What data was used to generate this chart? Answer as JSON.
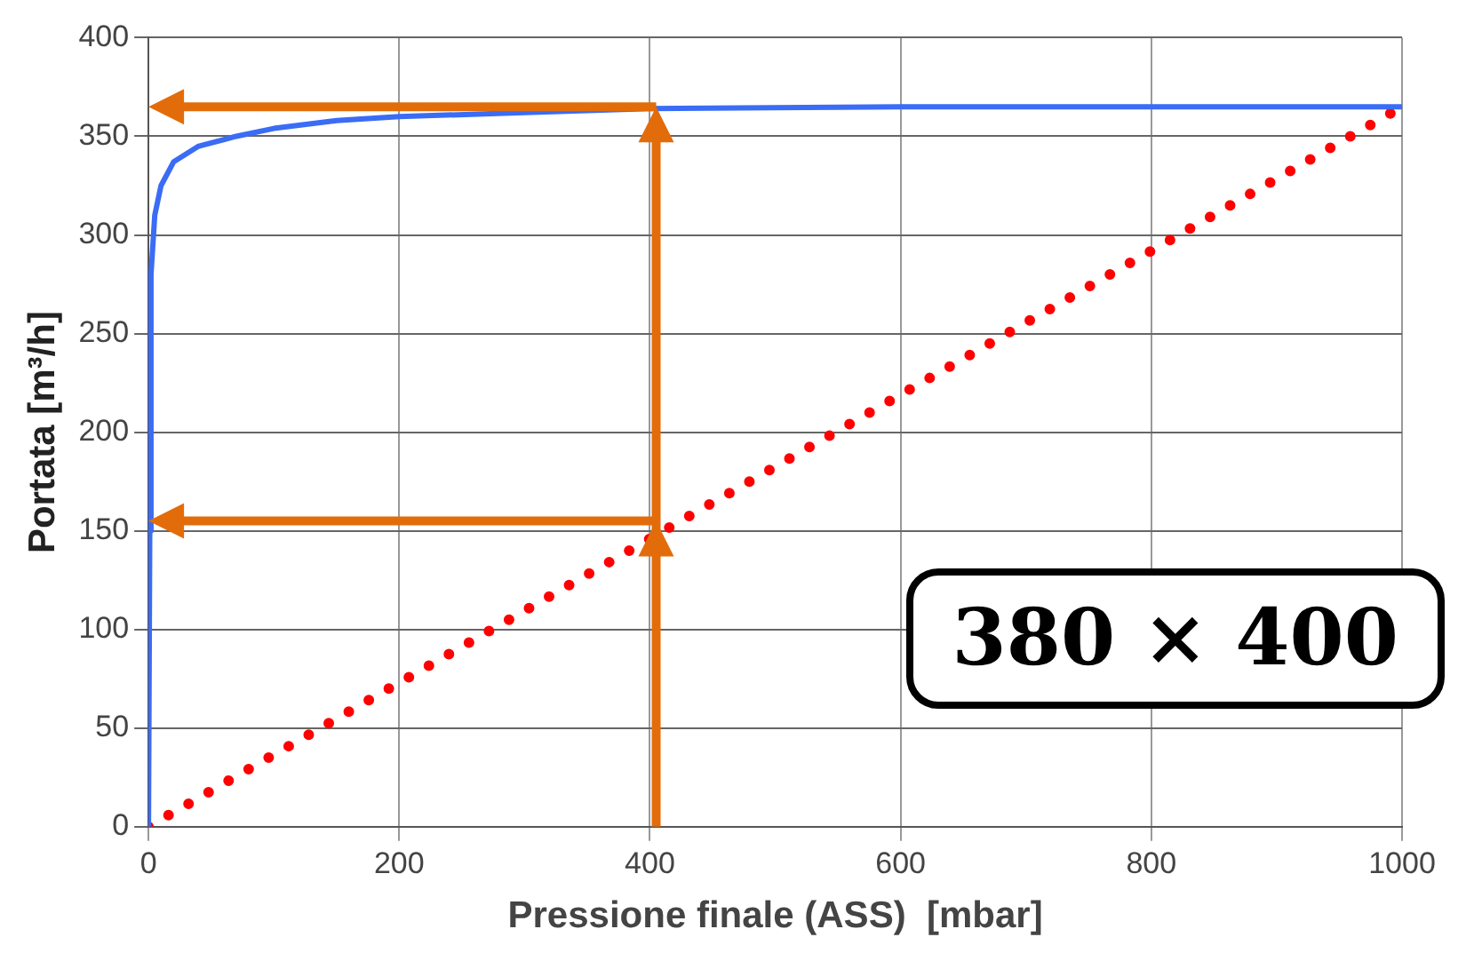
{
  "chart_data": {
    "type": "line",
    "xlabel": "Pressione finale (ASS)  [mbar]",
    "ylabel": "Portata [m³/h]",
    "xlim": [
      0,
      1000
    ],
    "xticks": [
      0,
      200,
      400,
      600,
      800,
      1000
    ],
    "ylim": [
      0,
      400
    ],
    "yticks": [
      0,
      50,
      100,
      150,
      200,
      250,
      300,
      350,
      400
    ],
    "grid": true,
    "legend": false,
    "marker": "none",
    "series": [
      {
        "color": "#3b6cf5",
        "line_style": "solid",
        "x": [
          0,
          1,
          2,
          5,
          10,
          20,
          40,
          70,
          100,
          150,
          200,
          300,
          400,
          600,
          800,
          1000
        ],
        "values": [
          0,
          150,
          280,
          310,
          325,
          337,
          345,
          350,
          354,
          358,
          360,
          362,
          364,
          365,
          365,
          365
        ]
      },
      {
        "color": "#ff0000",
        "line_style": "dotted",
        "x": [
          0,
          1000
        ],
        "values": [
          0,
          365
        ]
      }
    ],
    "ref_lines": [
      {
        "axis": "x",
        "value": 405,
        "color": "#e36c0a"
      },
      {
        "axis": "y",
        "value": 365,
        "color": "#e36c0a"
      },
      {
        "axis": "y",
        "value": 155,
        "color": "#e36c0a"
      }
    ],
    "annotations": [
      "380 × 400"
    ]
  }
}
